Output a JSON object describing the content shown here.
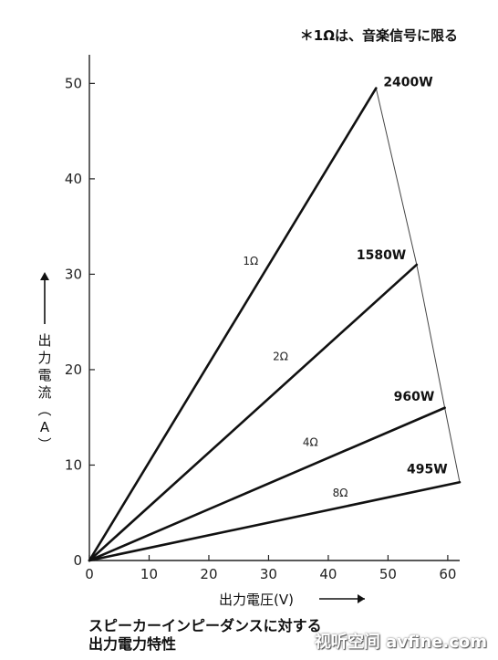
{
  "note": "＊1Ωは、音楽信号に限る",
  "caption": {
    "line1": "スピーカーインピーダンスに対する",
    "line2": "出力電力特性"
  },
  "watermark": "视听空间 avfine.com",
  "chart_data": {
    "type": "line",
    "xlabel": "出力電圧(V)",
    "ylabel": "出力電流(A)",
    "xlim": [
      0,
      62
    ],
    "ylim": [
      0,
      53
    ],
    "xticks": [
      0,
      10,
      20,
      30,
      40,
      50,
      60
    ],
    "yticks": [
      0,
      10,
      20,
      30,
      40,
      50
    ],
    "grid": false,
    "series": [
      {
        "name": "1Ω",
        "x": [
          0,
          48
        ],
        "y": [
          0,
          49.5
        ],
        "power_label": "2400W",
        "label_x": 27,
        "label_y": 31
      },
      {
        "name": "2Ω",
        "x": [
          0,
          54.8
        ],
        "y": [
          0,
          31
        ],
        "power_label": "1580W",
        "label_x": 32,
        "label_y": 21
      },
      {
        "name": "4Ω",
        "x": [
          0,
          59.5
        ],
        "y": [
          0,
          16
        ],
        "power_label": "960W",
        "label_x": 37,
        "label_y": 12
      },
      {
        "name": "8Ω",
        "x": [
          0,
          62
        ],
        "y": [
          0,
          8.2
        ],
        "power_label": "495W",
        "label_x": 42,
        "label_y": 6.7
      }
    ],
    "envelope": {
      "x": [
        48,
        54.8,
        59.5,
        62
      ],
      "y": [
        49.5,
        31,
        16,
        8.2
      ]
    }
  }
}
